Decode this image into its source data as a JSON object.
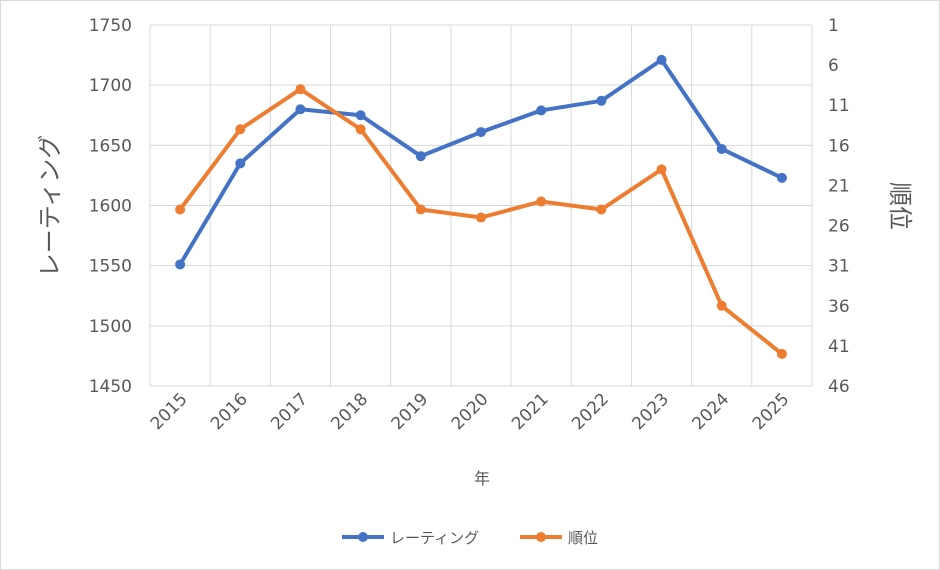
{
  "chart_data": {
    "type": "line",
    "categories": [
      "2015",
      "2016",
      "2017",
      "2018",
      "2019",
      "2020",
      "2021",
      "2022",
      "2023",
      "2024",
      "2025"
    ],
    "xlabel": "年",
    "ylabel": "レーティング",
    "y2label": "順位",
    "ylim": [
      1450,
      1750
    ],
    "y_ticks": [
      "1450",
      "1500",
      "1550",
      "1600",
      "1650",
      "1700",
      "1750"
    ],
    "y2lim": [
      1,
      46
    ],
    "y2_reversed": true,
    "y2_ticks": [
      "1",
      "6",
      "11",
      "16",
      "21",
      "26",
      "31",
      "36",
      "41",
      "46"
    ],
    "grid": true,
    "legend_position": "bottom",
    "series": [
      {
        "name": "レーティング",
        "axis": "left",
        "color": "#4472c4",
        "values": [
          1551,
          1635,
          1680,
          1675,
          1641,
          1661,
          1679,
          1687,
          1721,
          1647,
          1623
        ]
      },
      {
        "name": "順位",
        "axis": "right",
        "color": "#ed7d31",
        "values": [
          24,
          14,
          9,
          14,
          24,
          25,
          23,
          24,
          19,
          36,
          42
        ]
      }
    ]
  }
}
